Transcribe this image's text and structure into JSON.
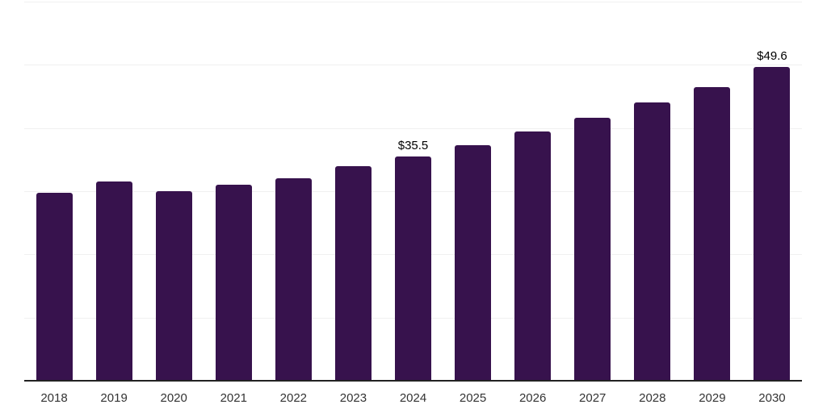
{
  "chart_data": {
    "type": "bar",
    "categories": [
      "2018",
      "2019",
      "2020",
      "2021",
      "2022",
      "2023",
      "2024",
      "2025",
      "2026",
      "2027",
      "2028",
      "2029",
      "2030"
    ],
    "values": [
      29.7,
      31.5,
      30.0,
      31.0,
      32.1,
      34.0,
      35.5,
      37.3,
      39.4,
      41.6,
      44.0,
      46.5,
      49.6
    ],
    "data_labels": {
      "2024": "$35.5",
      "2030": "$49.6"
    },
    "title": "",
    "xlabel": "",
    "ylabel": "",
    "ylim": [
      0,
      60
    ],
    "gridline_step": 10,
    "grid": true,
    "legend": "none",
    "y_axis_labels_visible": false
  },
  "colors": {
    "bar": "#37124D",
    "grid_line": "#f0f0f0",
    "axis_line": "#222222",
    "tick_label": "#333333",
    "data_label": "#000000",
    "background": "#ffffff"
  }
}
